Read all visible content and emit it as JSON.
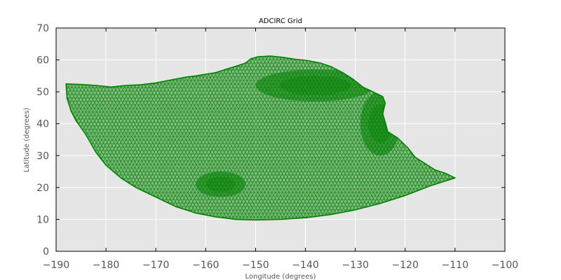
{
  "chart_data": {
    "type": "mesh",
    "title": "ADCIRC Grid",
    "xlabel": "Longitude (degrees)",
    "ylabel": "Latitude (degrees)",
    "xlim": [
      -190,
      -100
    ],
    "ylim": [
      0,
      70
    ],
    "x_ticks": [
      -190,
      -180,
      -170,
      -160,
      -150,
      -140,
      -130,
      -120,
      -110,
      -100
    ],
    "y_ticks": [
      0,
      10,
      20,
      30,
      40,
      50,
      60,
      70
    ],
    "x_tick_labels": [
      "−190",
      "−180",
      "−170",
      "−160",
      "−150",
      "−140",
      "−130",
      "−120",
      "−110",
      "−100"
    ],
    "y_tick_labels": [
      "0",
      "10",
      "20",
      "30",
      "40",
      "50",
      "60",
      "70"
    ],
    "grid": true,
    "background_color": "#e5e5e5",
    "grid_color": "#ffffff",
    "mesh_color": "#008000",
    "domain_outline": [
      [
        -188,
        52.5
      ],
      [
        -187.8,
        48
      ],
      [
        -187,
        44
      ],
      [
        -186,
        41
      ],
      [
        -184,
        36.5
      ],
      [
        -182,
        31
      ],
      [
        -180,
        27
      ],
      [
        -177,
        23
      ],
      [
        -174,
        20
      ],
      [
        -170,
        17
      ],
      [
        -166,
        14
      ],
      [
        -162,
        12
      ],
      [
        -158,
        10.8
      ],
      [
        -154,
        10
      ],
      [
        -150,
        9.8
      ],
      [
        -145,
        10
      ],
      [
        -140,
        10.5
      ],
      [
        -135,
        11.5
      ],
      [
        -130,
        13
      ],
      [
        -125,
        15
      ],
      [
        -120,
        17.5
      ],
      [
        -115,
        20.5
      ],
      [
        -110,
        23
      ],
      [
        -112,
        24.5
      ],
      [
        -114,
        25.5
      ],
      [
        -116,
        27.5
      ],
      [
        -118,
        29.5
      ],
      [
        -119.5,
        32.5
      ],
      [
        -121.5,
        35.5
      ],
      [
        -123.5,
        37.5
      ],
      [
        -124,
        40.5
      ],
      [
        -124.5,
        43
      ],
      [
        -124,
        46.5
      ],
      [
        -124.5,
        48.5
      ],
      [
        -126.5,
        50
      ],
      [
        -128.5,
        51.5
      ],
      [
        -130.5,
        54
      ],
      [
        -132.5,
        56
      ],
      [
        -135,
        58
      ],
      [
        -137,
        59
      ],
      [
        -139.5,
        59.8
      ],
      [
        -142,
        60.2
      ],
      [
        -144.5,
        60.8
      ],
      [
        -147,
        61.2
      ],
      [
        -149.5,
        61
      ],
      [
        -151,
        60.3
      ],
      [
        -152,
        59
      ],
      [
        -154,
        58
      ],
      [
        -156,
        57
      ],
      [
        -158,
        56
      ],
      [
        -160,
        55.5
      ],
      [
        -162,
        55
      ],
      [
        -164,
        54.6
      ],
      [
        -166,
        54
      ],
      [
        -168,
        53.4
      ],
      [
        -170,
        52.8
      ],
      [
        -173,
        52.2
      ],
      [
        -176,
        52
      ],
      [
        -179,
        51.5
      ],
      [
        -182,
        52
      ],
      [
        -185,
        52.3
      ],
      [
        -188,
        52.5
      ]
    ],
    "dense_mesh_regions": [
      {
        "center": [
          -157,
          21
        ],
        "radius": [
          5,
          4
        ]
      },
      {
        "center": [
          -138,
          52
        ],
        "radius": [
          12,
          5
        ]
      },
      {
        "center": [
          -125,
          40
        ],
        "radius": [
          4,
          10
        ]
      }
    ]
  }
}
